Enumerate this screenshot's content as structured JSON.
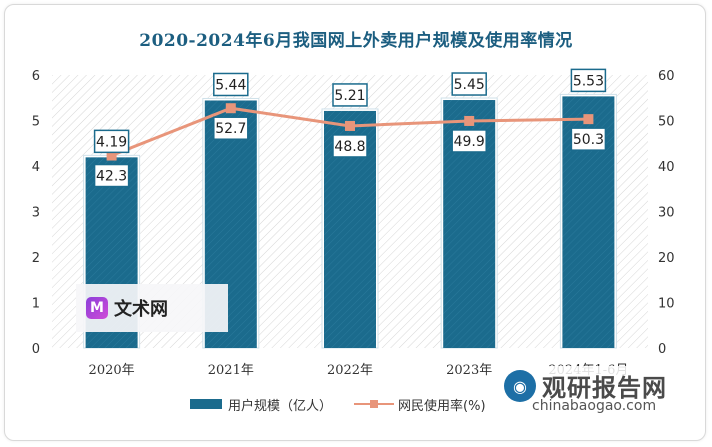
{
  "title": "2020-2024年6月我国网上外卖用户规模及使用率情况",
  "chart_data": {
    "type": "bar",
    "categories": [
      "2020年",
      "2021年",
      "2022年",
      "2023年",
      "2024年1-6月"
    ],
    "series": [
      {
        "name": "用户规模（亿人）",
        "type": "bar",
        "axis": "left",
        "color": "#1b6b8d",
        "values": [
          4.19,
          5.44,
          5.21,
          5.45,
          5.53
        ]
      },
      {
        "name": "网民使用率(%)",
        "type": "line",
        "axis": "right",
        "color": "#e8957a",
        "values": [
          42.3,
          52.7,
          48.8,
          49.9,
          50.3
        ]
      }
    ],
    "y_left": {
      "min": 0,
      "max": 6,
      "ticks": [
        "0",
        "1",
        "2",
        "3",
        "4",
        "5",
        "6"
      ]
    },
    "y_right": {
      "min": 0,
      "max": 60,
      "ticks": [
        "0",
        "10",
        "20",
        "30",
        "40",
        "50",
        "60"
      ]
    },
    "bar_labels": [
      "4.19",
      "5.44",
      "5.21",
      "5.45",
      "5.53"
    ],
    "line_labels": [
      "42.3",
      "52.7",
      "48.8",
      "49.9",
      "50.3"
    ],
    "legend": [
      "用户规模（亿人）",
      "网民使用率(%)"
    ],
    "legend_position": "bottom"
  },
  "watermarks": {
    "left_logo": {
      "text": "文术网",
      "icon": "m-logo-icon"
    },
    "right_logo": {
      "text": "观研报告网",
      "url": "chinabaogao.com",
      "icon": "globe-icon"
    }
  }
}
